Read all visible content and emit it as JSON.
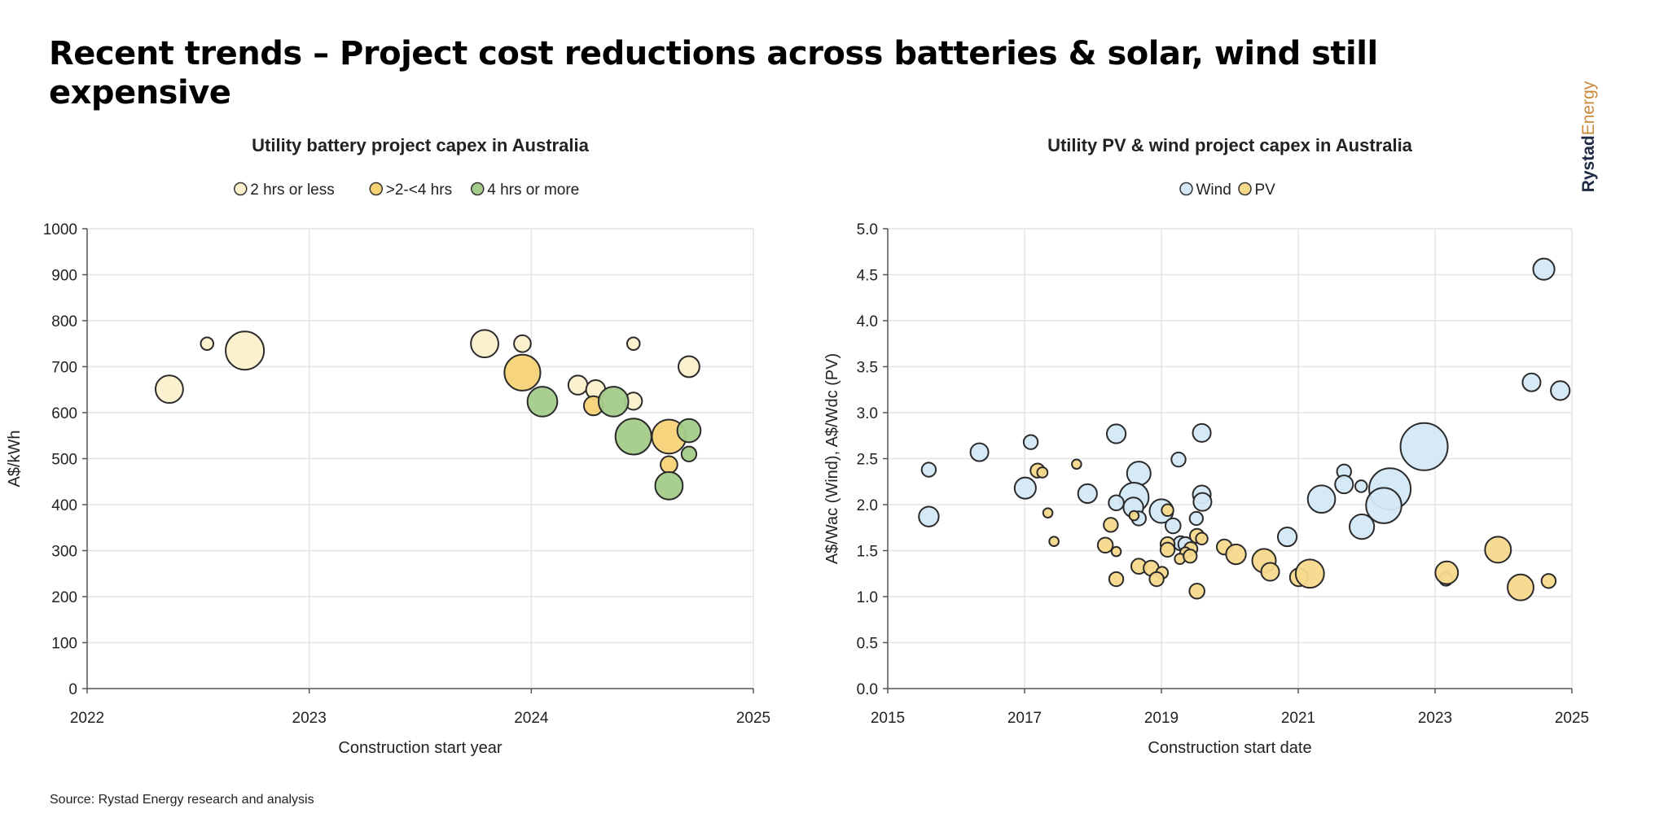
{
  "header": {
    "title": "Recent trends – Project cost reductions across batteries & solar, wind still expensive"
  },
  "logo": {
    "part1": "Rystad",
    "part2": "Energy"
  },
  "footer": {
    "source": "Source: Rystad Energy research and analysis"
  },
  "chart_data": [
    {
      "type": "scatter",
      "title": "Utility battery project capex in Australia",
      "xlabel": "Construction start year",
      "ylabel": "A$/kWh",
      "xlim": [
        2022,
        2025
      ],
      "ylim": [
        0,
        1000
      ],
      "xticks": [
        "2022",
        "2023",
        "2024",
        "2025"
      ],
      "yticks": [
        "0",
        "100",
        "200",
        "300",
        "400",
        "500",
        "600",
        "700",
        "800",
        "900",
        "1000"
      ],
      "grid": true,
      "legend_position": "top",
      "series": [
        {
          "name": "2 hrs or less",
          "color": "#FBF0CC",
          "points": [
            {
              "x": 2022.37,
              "y": 651,
              "size": 0.72
            },
            {
              "x": 2022.54,
              "y": 750,
              "size": 0.33
            },
            {
              "x": 2022.71,
              "y": 735,
              "size": 1.0
            },
            {
              "x": 2023.79,
              "y": 750,
              "size": 0.72
            },
            {
              "x": 2023.96,
              "y": 750,
              "size": 0.44
            },
            {
              "x": 2024.21,
              "y": 660,
              "size": 0.5
            },
            {
              "x": 2024.29,
              "y": 650,
              "size": 0.5
            },
            {
              "x": 2024.46,
              "y": 625,
              "size": 0.45
            },
            {
              "x": 2024.46,
              "y": 750,
              "size": 0.33
            },
            {
              "x": 2024.71,
              "y": 700,
              "size": 0.55
            }
          ]
        },
        {
          "name": ">2-<4 hrs",
          "color": "#F7D277",
          "points": [
            {
              "x": 2023.96,
              "y": 687,
              "size": 0.94
            },
            {
              "x": 2024.28,
              "y": 615,
              "size": 0.5
            },
            {
              "x": 2024.62,
              "y": 548,
              "size": 0.89
            },
            {
              "x": 2024.62,
              "y": 487,
              "size": 0.44
            }
          ]
        },
        {
          "name": "4 hrs or more",
          "color": "#A3CB8A",
          "points": [
            {
              "x": 2024.05,
              "y": 624,
              "size": 0.78
            },
            {
              "x": 2024.37,
              "y": 624,
              "size": 0.78
            },
            {
              "x": 2024.46,
              "y": 548,
              "size": 0.94
            },
            {
              "x": 2024.71,
              "y": 561,
              "size": 0.61
            },
            {
              "x": 2024.71,
              "y": 510,
              "size": 0.39
            },
            {
              "x": 2024.62,
              "y": 441,
              "size": 0.72
            }
          ]
        }
      ]
    },
    {
      "type": "scatter",
      "title": "Utility PV & wind project capex in Australia",
      "xlabel": "Construction start date",
      "ylabel": "A$/Wac (Wind), A$/Wdc (PV)",
      "xlim": [
        2015,
        2025
      ],
      "ylim": [
        0,
        5
      ],
      "xticks": [
        "2015",
        "2017",
        "2019",
        "2021",
        "2023",
        "2025"
      ],
      "yticks": [
        "0.0",
        "0.5",
        "1.0",
        "1.5",
        "2.0",
        "2.5",
        "3.0",
        "3.5",
        "4.0",
        "4.5",
        "5.0"
      ],
      "grid": true,
      "legend_position": "top",
      "series": [
        {
          "name": "Wind",
          "color": "#D4E8F7",
          "points": [
            {
              "x": 2024.59,
              "y": 4.56,
              "size": 0.45
            },
            {
              "x": 2024.41,
              "y": 3.33,
              "size": 0.38
            },
            {
              "x": 2024.83,
              "y": 3.24,
              "size": 0.4
            },
            {
              "x": 2018.34,
              "y": 2.77,
              "size": 0.4
            },
            {
              "x": 2019.59,
              "y": 2.78,
              "size": 0.38
            },
            {
              "x": 2017.09,
              "y": 2.68,
              "size": 0.3
            },
            {
              "x": 2016.34,
              "y": 2.57,
              "size": 0.38
            },
            {
              "x": 2015.6,
              "y": 2.38,
              "size": 0.3
            },
            {
              "x": 2019.25,
              "y": 2.49,
              "size": 0.3
            },
            {
              "x": 2022.84,
              "y": 2.63,
              "size": 1.0
            },
            {
              "x": 2018.67,
              "y": 2.34,
              "size": 0.5
            },
            {
              "x": 2017.01,
              "y": 2.18,
              "size": 0.45
            },
            {
              "x": 2017.92,
              "y": 2.12,
              "size": 0.4
            },
            {
              "x": 2018.6,
              "y": 2.08,
              "size": 0.62
            },
            {
              "x": 2018.34,
              "y": 2.02,
              "size": 0.32
            },
            {
              "x": 2018.59,
              "y": 1.97,
              "size": 0.42
            },
            {
              "x": 2018.67,
              "y": 1.85,
              "size": 0.3
            },
            {
              "x": 2019.0,
              "y": 1.93,
              "size": 0.5
            },
            {
              "x": 2019.59,
              "y": 2.11,
              "size": 0.38
            },
            {
              "x": 2019.6,
              "y": 2.03,
              "size": 0.38
            },
            {
              "x": 2019.51,
              "y": 1.85,
              "size": 0.28
            },
            {
              "x": 2019.17,
              "y": 1.77,
              "size": 0.32
            },
            {
              "x": 2019.28,
              "y": 1.58,
              "size": 0.3
            },
            {
              "x": 2019.35,
              "y": 1.57,
              "size": 0.3
            },
            {
              "x": 2015.6,
              "y": 1.87,
              "size": 0.42
            },
            {
              "x": 2020.84,
              "y": 1.65,
              "size": 0.4
            },
            {
              "x": 2021.34,
              "y": 2.06,
              "size": 0.58
            },
            {
              "x": 2021.67,
              "y": 2.36,
              "size": 0.3
            },
            {
              "x": 2021.67,
              "y": 2.22,
              "size": 0.38
            },
            {
              "x": 2021.92,
              "y": 2.2,
              "size": 0.25
            },
            {
              "x": 2022.34,
              "y": 2.17,
              "size": 0.88
            },
            {
              "x": 2022.25,
              "y": 1.99,
              "size": 0.75
            },
            {
              "x": 2021.93,
              "y": 1.76,
              "size": 0.52
            },
            {
              "x": 2023.16,
              "y": 1.19,
              "size": 0.28
            }
          ]
        },
        {
          "name": "PV",
          "color": "#F7D98C",
          "points": [
            {
              "x": 2017.19,
              "y": 2.37,
              "size": 0.3
            },
            {
              "x": 2017.26,
              "y": 2.35,
              "size": 0.22
            },
            {
              "x": 2017.76,
              "y": 2.44,
              "size": 0.2
            },
            {
              "x": 2017.34,
              "y": 1.91,
              "size": 0.2
            },
            {
              "x": 2017.43,
              "y": 1.6,
              "size": 0.2
            },
            {
              "x": 2018.26,
              "y": 1.78,
              "size": 0.3
            },
            {
              "x": 2018.6,
              "y": 1.88,
              "size": 0.2
            },
            {
              "x": 2019.09,
              "y": 1.94,
              "size": 0.25
            },
            {
              "x": 2018.18,
              "y": 1.56,
              "size": 0.32
            },
            {
              "x": 2018.34,
              "y": 1.49,
              "size": 0.2
            },
            {
              "x": 2019.09,
              "y": 1.57,
              "size": 0.3
            },
            {
              "x": 2019.09,
              "y": 1.51,
              "size": 0.3
            },
            {
              "x": 2019.52,
              "y": 1.66,
              "size": 0.3
            },
            {
              "x": 2019.59,
              "y": 1.63,
              "size": 0.25
            },
            {
              "x": 2019.43,
              "y": 1.52,
              "size": 0.28
            },
            {
              "x": 2019.35,
              "y": 1.48,
              "size": 0.22
            },
            {
              "x": 2019.27,
              "y": 1.41,
              "size": 0.22
            },
            {
              "x": 2019.42,
              "y": 1.44,
              "size": 0.28
            },
            {
              "x": 2019.92,
              "y": 1.54,
              "size": 0.32
            },
            {
              "x": 2020.09,
              "y": 1.46,
              "size": 0.42
            },
            {
              "x": 2020.5,
              "y": 1.39,
              "size": 0.5
            },
            {
              "x": 2020.59,
              "y": 1.27,
              "size": 0.38
            },
            {
              "x": 2021.01,
              "y": 1.21,
              "size": 0.38
            },
            {
              "x": 2021.17,
              "y": 1.25,
              "size": 0.6
            },
            {
              "x": 2018.67,
              "y": 1.33,
              "size": 0.32
            },
            {
              "x": 2018.85,
              "y": 1.31,
              "size": 0.32
            },
            {
              "x": 2019.01,
              "y": 1.26,
              "size": 0.25
            },
            {
              "x": 2018.93,
              "y": 1.19,
              "size": 0.3
            },
            {
              "x": 2018.34,
              "y": 1.19,
              "size": 0.3
            },
            {
              "x": 2019.52,
              "y": 1.06,
              "size": 0.32
            },
            {
              "x": 2023.17,
              "y": 1.26,
              "size": 0.48
            },
            {
              "x": 2023.92,
              "y": 1.51,
              "size": 0.55
            },
            {
              "x": 2024.25,
              "y": 1.1,
              "size": 0.55
            },
            {
              "x": 2024.66,
              "y": 1.17,
              "size": 0.3
            }
          ]
        }
      ]
    }
  ]
}
